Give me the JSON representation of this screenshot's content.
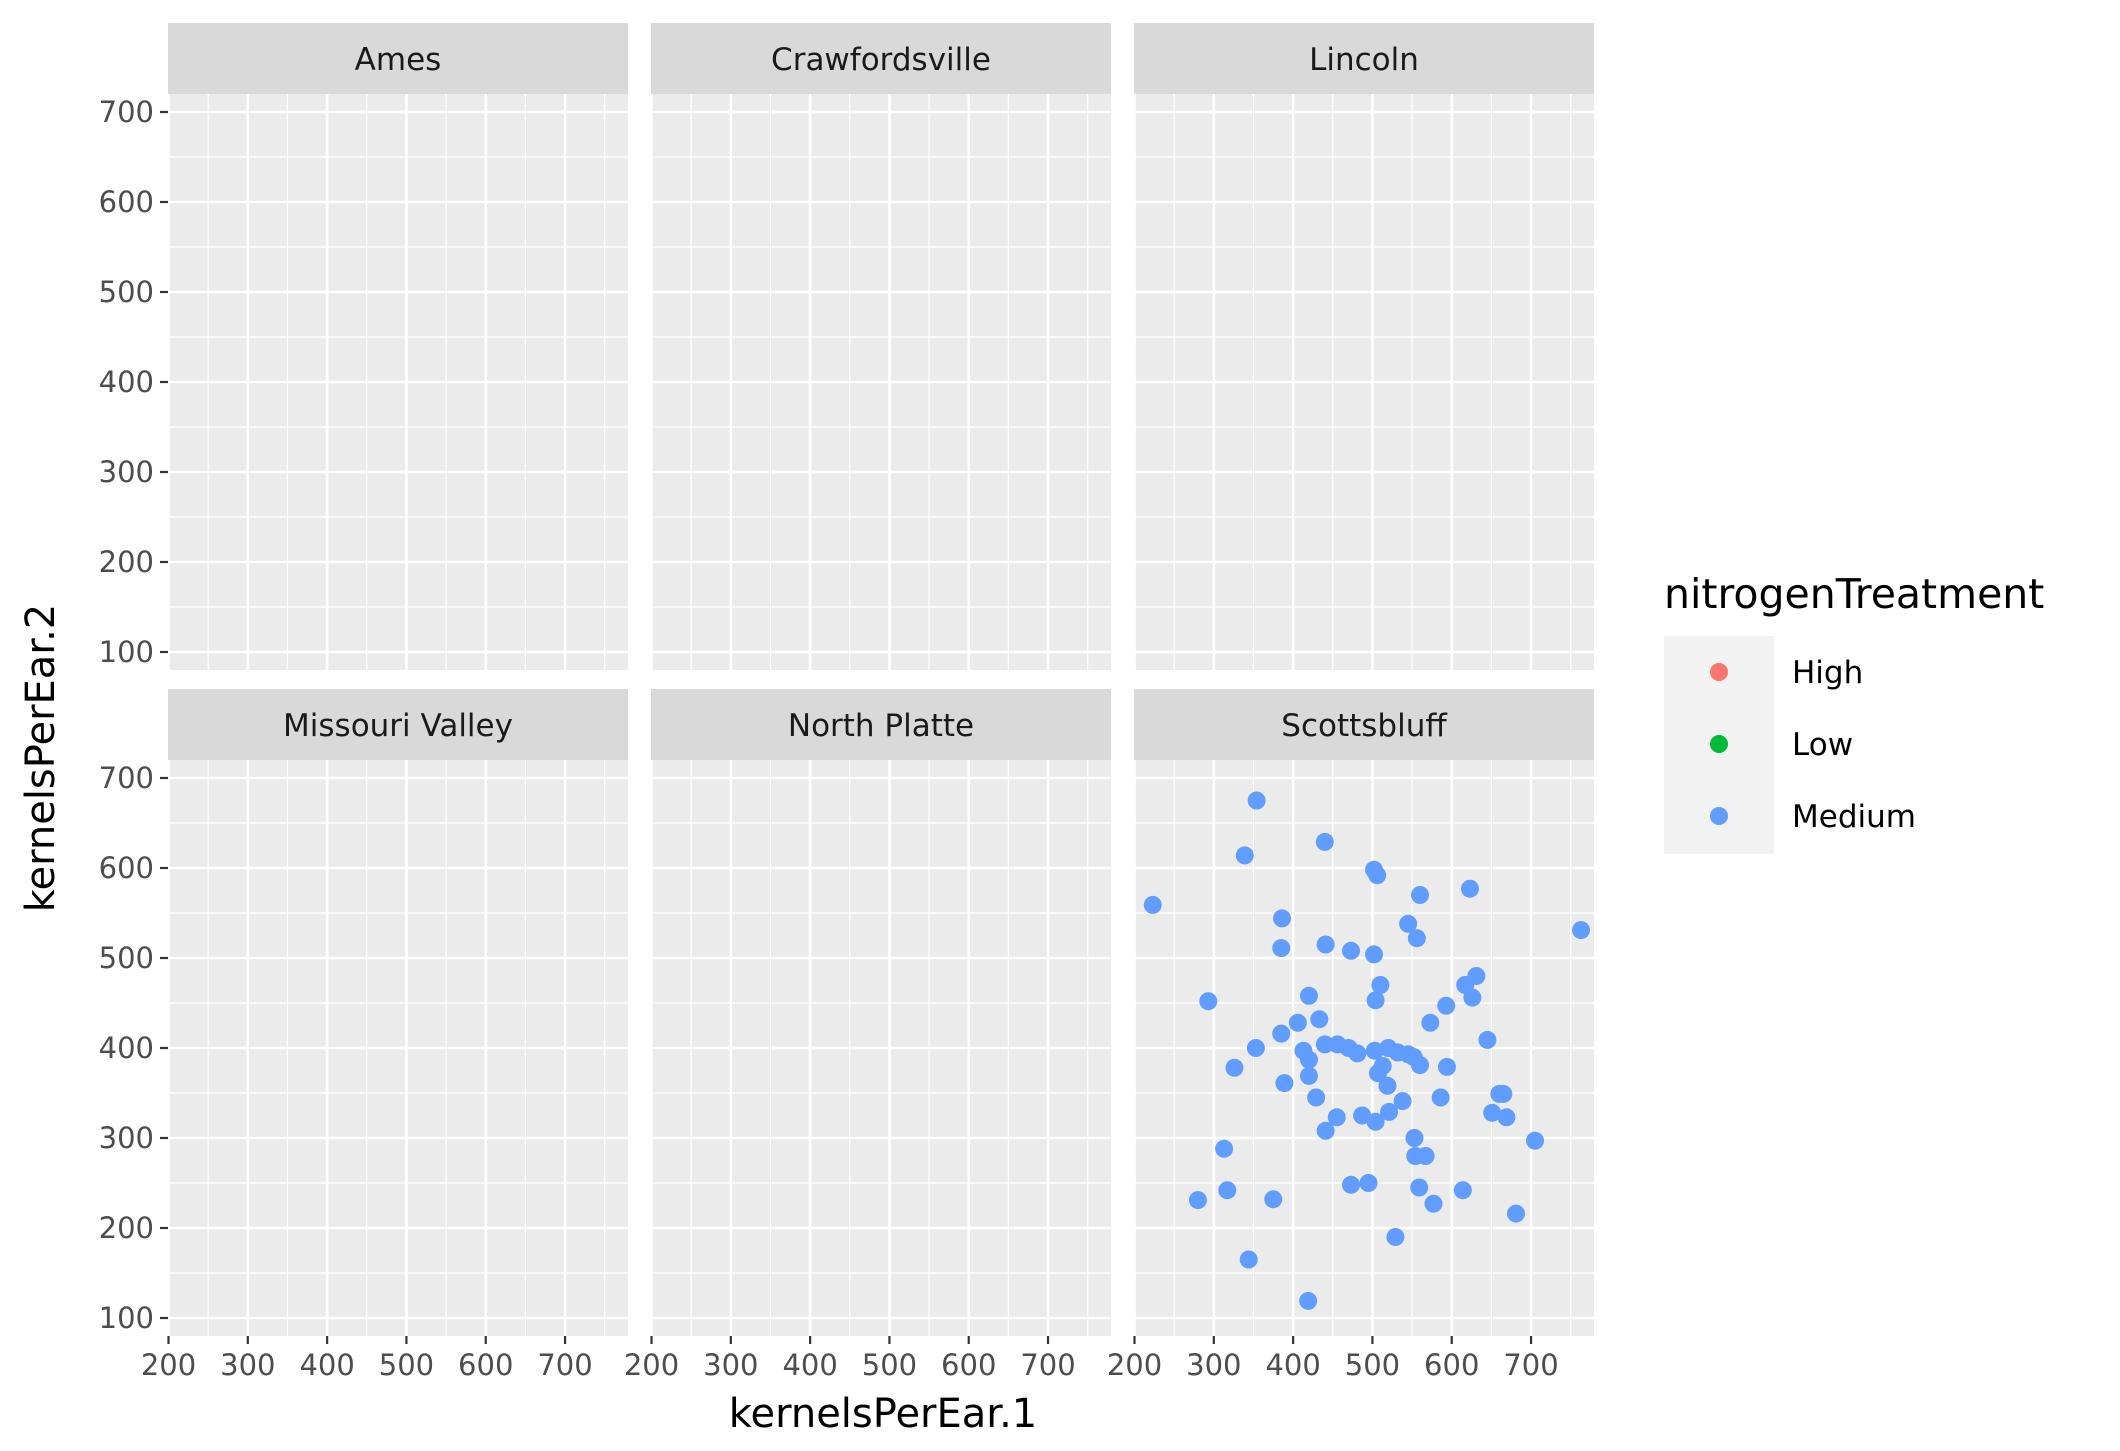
{
  "chart_data": {
    "type": "scatter",
    "facet_by": "location",
    "xlabel": "kernelsPerEar.1",
    "ylabel": "kernelsPerEar.2",
    "xlim": [
      200,
      780
    ],
    "ylim": [
      100,
      700
    ],
    "x_ticks": [
      200,
      300,
      400,
      500,
      600,
      700
    ],
    "y_ticks": [
      100,
      200,
      300,
      400,
      500,
      600,
      700
    ],
    "grid": true,
    "facets": [
      "Ames",
      "Crawfordsville",
      "Lincoln",
      "Missouri Valley",
      "North Platte",
      "Scottsbluff"
    ],
    "legend": {
      "title": "nitrogenTreatment",
      "position": "right",
      "entries": [
        {
          "label": "High",
          "color": "#F8766D"
        },
        {
          "label": "Low",
          "color": "#00BA38"
        },
        {
          "label": "Medium",
          "color": "#619CFF"
        }
      ]
    },
    "series": [
      {
        "name": "Medium",
        "color": "#619CFF",
        "facet": "Scottsbluff",
        "points": [
          [
            354,
            675
          ],
          [
            339,
            614
          ],
          [
            440,
            629
          ],
          [
            223,
            559
          ],
          [
            502,
            598
          ],
          [
            506,
            592
          ],
          [
            560,
            570
          ],
          [
            623,
            577
          ],
          [
            386,
            544
          ],
          [
            545,
            538
          ],
          [
            556,
            522
          ],
          [
            763,
            531
          ],
          [
            441,
            515
          ],
          [
            385,
            511
          ],
          [
            473,
            508
          ],
          [
            502,
            504
          ],
          [
            510,
            470
          ],
          [
            504,
            453
          ],
          [
            420,
            458
          ],
          [
            617,
            470
          ],
          [
            631,
            480
          ],
          [
            626,
            456
          ],
          [
            293,
            452
          ],
          [
            593,
            447
          ],
          [
            433,
            432
          ],
          [
            406,
            428
          ],
          [
            573,
            428
          ],
          [
            385,
            416
          ],
          [
            645,
            409
          ],
          [
            353,
            400
          ],
          [
            413,
            397
          ],
          [
            420,
            387
          ],
          [
            440,
            404
          ],
          [
            456,
            404
          ],
          [
            470,
            400
          ],
          [
            481,
            394
          ],
          [
            503,
            397
          ],
          [
            520,
            400
          ],
          [
            532,
            395
          ],
          [
            545,
            393
          ],
          [
            552,
            390
          ],
          [
            513,
            380
          ],
          [
            560,
            381
          ],
          [
            507,
            372
          ],
          [
            594,
            379
          ],
          [
            326,
            378
          ],
          [
            420,
            369
          ],
          [
            389,
            361
          ],
          [
            519,
            358
          ],
          [
            660,
            349
          ],
          [
            665,
            349
          ],
          [
            429,
            345
          ],
          [
            538,
            341
          ],
          [
            586,
            345
          ],
          [
            651,
            328
          ],
          [
            669,
            323
          ],
          [
            705,
            297
          ],
          [
            455,
            323
          ],
          [
            487,
            325
          ],
          [
            504,
            318
          ],
          [
            521,
            329
          ],
          [
            441,
            308
          ],
          [
            553,
            300
          ],
          [
            554,
            280
          ],
          [
            567,
            280
          ],
          [
            313,
            288
          ],
          [
            317,
            242
          ],
          [
            495,
            250
          ],
          [
            473,
            248
          ],
          [
            559,
            245
          ],
          [
            614,
            242
          ],
          [
            577,
            227
          ],
          [
            280,
            231
          ],
          [
            375,
            232
          ],
          [
            681,
            216
          ],
          [
            529,
            190
          ],
          [
            344,
            165
          ],
          [
            419,
            119
          ]
        ]
      }
    ]
  }
}
